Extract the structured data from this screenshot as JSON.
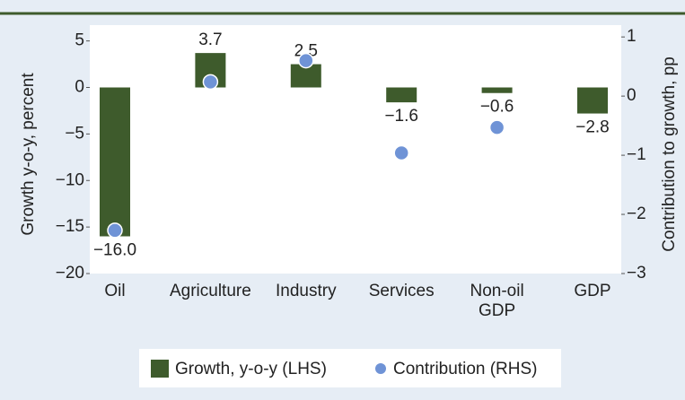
{
  "chart_data": {
    "type": "bar",
    "categories": [
      "Oil",
      "Agriculture",
      "Industry",
      "Services",
      "Non-oil GDP",
      "GDP"
    ],
    "series": [
      {
        "name": "Growth, y-o-y (LHS)",
        "color": "#3e5b2c",
        "type": "bar",
        "values": [
          -16.0,
          3.7,
          2.5,
          -1.6,
          -0.6,
          -2.8
        ],
        "value_labels": [
          "−16.0",
          "3.7",
          "2.5",
          "−1.6",
          "−0.6",
          "−2.8"
        ]
      },
      {
        "name": "Contribution (RHS)",
        "color": "#6f93d6",
        "type": "scatter",
        "axis": "y2",
        "values": [
          -2.27,
          0.24,
          0.6,
          -0.96,
          -0.53,
          null
        ]
      }
    ],
    "y_label": "Growth y-o-y, percent",
    "y2_label": "Contribution to growth, pp",
    "ylim": [
      -20,
      6.7
    ],
    "yticks": [
      5,
      0,
      {
        "value": -5,
        "label": "−5"
      },
      {
        "value": -10,
        "label": "−10"
      },
      {
        "value": -15,
        "label": "−15"
      },
      {
        "value": -20,
        "label": "−20"
      }
    ],
    "y2lim": [
      -3,
      1.2
    ],
    "y2ticks": [
      1,
      0,
      {
        "value": -1,
        "label": "−1"
      },
      {
        "value": -2,
        "label": "−2"
      },
      {
        "value": -3,
        "label": "−3"
      }
    ],
    "grid": false,
    "legend": "bottom"
  }
}
